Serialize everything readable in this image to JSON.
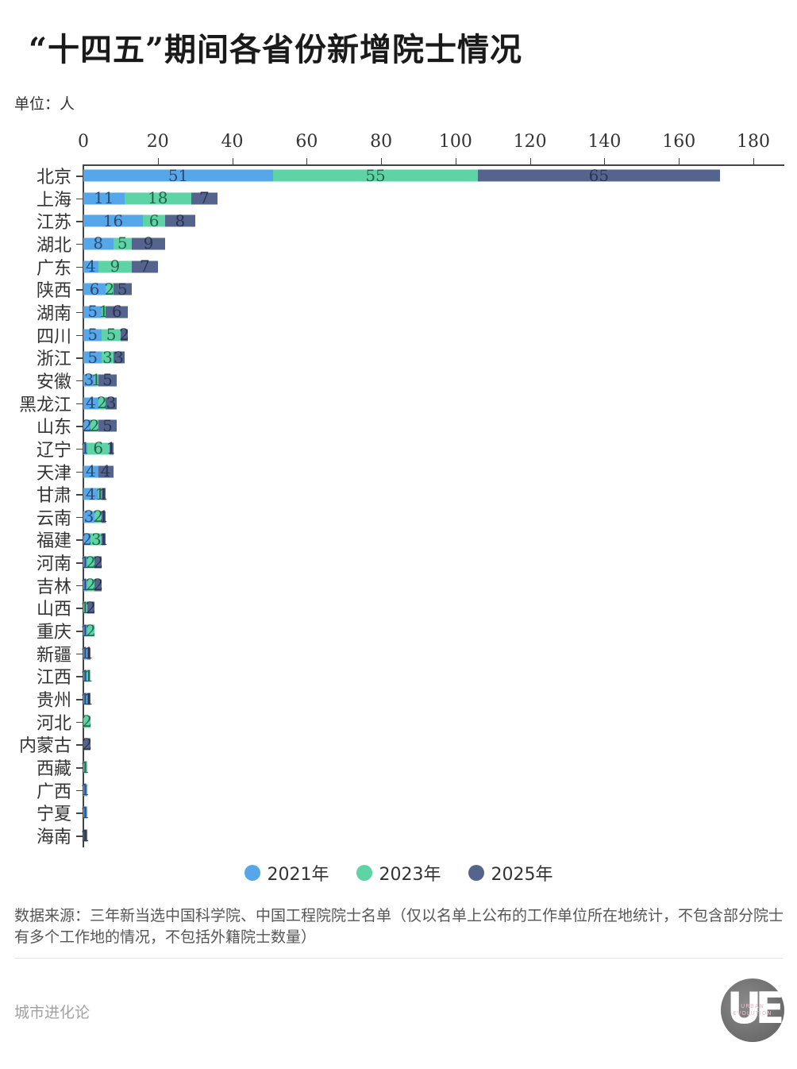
{
  "title": "“十四五”期间各省份新增院士情况",
  "unit_label": "单位：人",
  "legend": [
    {
      "label": "2021年",
      "color": "#55a7e9"
    },
    {
      "label": "2023年",
      "color": "#5dd3a6"
    },
    {
      "label": "2025年",
      "color": "#55648d"
    }
  ],
  "source_note": "数据来源：三年新当选中国科学院、中国工程院院士名单（仅以名单上公布的工作单位所在地统计，不包含部分院士有多个工作地的情况，不包括外籍院士数量）",
  "footer": {
    "brand": "城市进化论",
    "logo_text": "UE",
    "logo_subtext": "URBAN EVOLUTION"
  },
  "chart_data": {
    "type": "bar",
    "orientation": "horizontal",
    "stacked": true,
    "title": "“十四五”期间各省份新增院士情况",
    "xlabel": "",
    "ylabel": "",
    "unit": "人",
    "xlim": [
      0,
      180
    ],
    "xticks": [
      0,
      20,
      40,
      60,
      80,
      100,
      120,
      140,
      160,
      180
    ],
    "grid": false,
    "legend_position": "bottom",
    "data_labels": true,
    "categories": [
      "北京",
      "上海",
      "江苏",
      "湖北",
      "广东",
      "陕西",
      "湖南",
      "四川",
      "浙江",
      "安徽",
      "黑龙江",
      "山东",
      "辽宁",
      "天津",
      "甘肃",
      "云南",
      "福建",
      "河南",
      "吉林",
      "山西",
      "重庆",
      "新疆",
      "江西",
      "贵州",
      "河北",
      "内蒙古",
      "西藏",
      "广西",
      "宁夏",
      "海南"
    ],
    "series": [
      {
        "name": "2021年",
        "color": "#55a7e9",
        "label_color": "#2d4a72",
        "values": [
          51,
          11,
          16,
          8,
          4,
          6,
          5,
          5,
          5,
          3,
          4,
          2,
          1,
          4,
          4,
          3,
          2,
          1,
          1,
          0,
          1,
          1,
          1,
          1,
          0,
          0,
          0,
          1,
          1,
          0
        ]
      },
      {
        "name": "2023年",
        "color": "#5dd3a6",
        "label_color": "#24654a",
        "values": [
          55,
          18,
          6,
          5,
          9,
          2,
          1,
          5,
          3,
          1,
          2,
          2,
          6,
          0,
          1,
          2,
          3,
          2,
          2,
          1,
          2,
          0,
          1,
          0,
          2,
          0,
          1,
          0,
          0,
          0
        ]
      },
      {
        "name": "2025年",
        "color": "#55648d",
        "label_color": "#2b3452",
        "values": [
          65,
          7,
          8,
          9,
          7,
          5,
          6,
          2,
          3,
          5,
          3,
          5,
          1,
          4,
          1,
          1,
          1,
          2,
          2,
          2,
          0,
          1,
          0,
          1,
          0,
          2,
          0,
          0,
          0,
          1
        ]
      }
    ]
  }
}
